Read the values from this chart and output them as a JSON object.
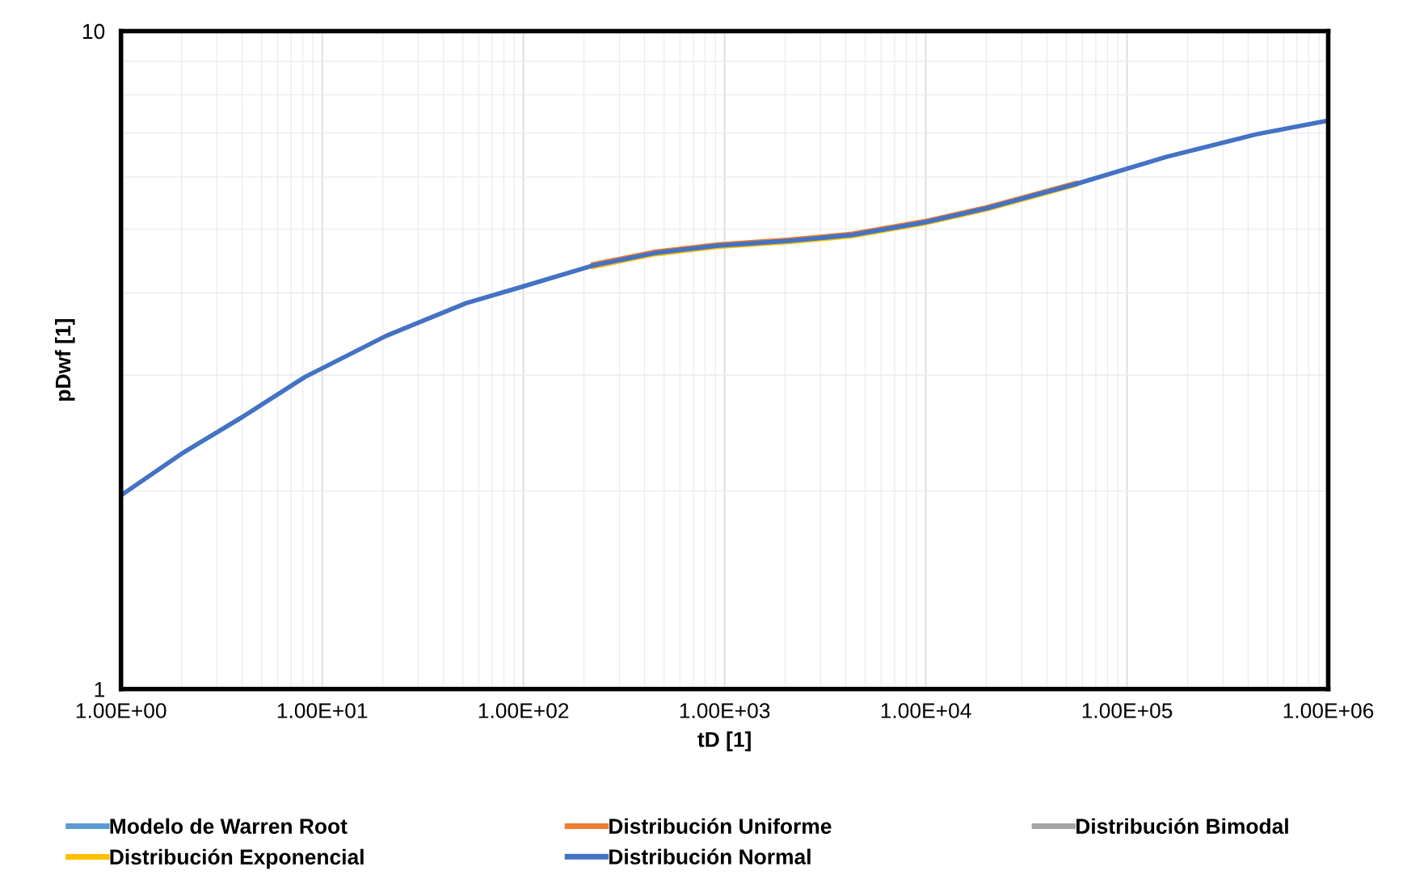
{
  "chart_data": {
    "type": "line",
    "xlabel": "tD [1]",
    "ylabel": "pDwf [1]",
    "log": "xy",
    "grid": true,
    "legend": "bottom",
    "xlim": [
      1,
      1000000
    ],
    "ylim": [
      1,
      10
    ],
    "xticks": [
      {
        "value": 1,
        "label": "1.00E+00"
      },
      {
        "value": 10,
        "label": "1.00E+01"
      },
      {
        "value": 100,
        "label": "1.00E+02"
      },
      {
        "value": 1000,
        "label": "1.00E+03"
      },
      {
        "value": 10000,
        "label": "1.00E+04"
      },
      {
        "value": 100000,
        "label": "1.00E+05"
      },
      {
        "value": 1000000,
        "label": "1.00E+06"
      }
    ],
    "yticks": [
      1,
      10
    ],
    "x": [
      1,
      2.05,
      4,
      8.2,
      20.7,
      52,
      96.6,
      220,
      451,
      925,
      2100,
      4310,
      9820,
      20100,
      56200,
      157000,
      440000,
      1000000
    ],
    "series": [
      {
        "name": "Modelo de Warren Root",
        "color": "#5b9bd5",
        "values": [
          null,
          null,
          null,
          null,
          null,
          null,
          null,
          null,
          null,
          null,
          null,
          null,
          null,
          null,
          null,
          null,
          null,
          null
        ]
      },
      {
        "name": "Distribución Uniforme",
        "color": "#ed7d31",
        "values": [
          null,
          null,
          null,
          null,
          null,
          null,
          null,
          4.42,
          4.62,
          4.74,
          4.82,
          4.92,
          5.14,
          5.4,
          5.88,
          null,
          null,
          null
        ]
      },
      {
        "name": "Distribución Bimodal",
        "color": "#a5a5a5",
        "values": [
          null,
          null,
          null,
          null,
          null,
          null,
          null,
          null,
          null,
          null,
          null,
          null,
          null,
          null,
          null,
          null,
          null,
          null
        ]
      },
      {
        "name": "Distribución Exponencial",
        "color": "#ffc000",
        "values": [
          null,
          null,
          null,
          null,
          null,
          null,
          null,
          4.38,
          4.58,
          4.7,
          4.78,
          4.88,
          5.1,
          5.36,
          5.84,
          null,
          null,
          null
        ]
      },
      {
        "name": "Distribución Normal",
        "color": "#4472c4",
        "values": [
          1.97,
          2.29,
          2.59,
          2.98,
          3.44,
          3.86,
          4.08,
          4.4,
          4.6,
          4.72,
          4.8,
          4.9,
          5.12,
          5.38,
          5.86,
          6.44,
          6.97,
          7.31
        ]
      }
    ]
  }
}
